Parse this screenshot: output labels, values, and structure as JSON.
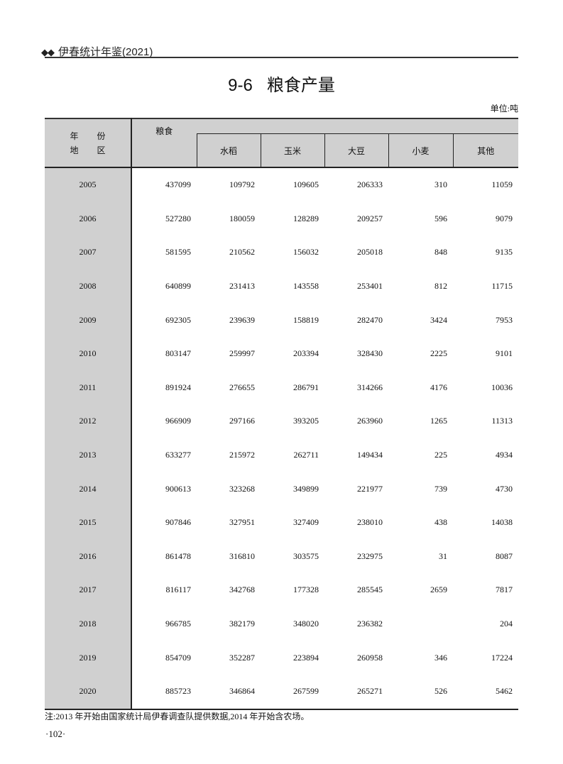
{
  "running_head": {
    "marker": "◆◆",
    "text": "伊春统计年鉴(2021)"
  },
  "title": {
    "number": "9-6",
    "text": "粮食产量"
  },
  "unit": "单位:吨",
  "table": {
    "year_header": {
      "line1": [
        "年",
        "份"
      ],
      "line2": [
        "地",
        "区"
      ]
    },
    "grain_header": "粮食",
    "sub_headers": [
      "水稻",
      "玉米",
      "大豆",
      "小麦",
      "其他"
    ],
    "rows": [
      {
        "year": "2005",
        "values": [
          "437099",
          "109792",
          "109605",
          "206333",
          "310",
          "11059"
        ]
      },
      {
        "year": "2006",
        "values": [
          "527280",
          "180059",
          "128289",
          "209257",
          "596",
          "9079"
        ]
      },
      {
        "year": "2007",
        "values": [
          "581595",
          "210562",
          "156032",
          "205018",
          "848",
          "9135"
        ]
      },
      {
        "year": "2008",
        "values": [
          "640899",
          "231413",
          "143558",
          "253401",
          "812",
          "11715"
        ]
      },
      {
        "year": "2009",
        "values": [
          "692305",
          "239639",
          "158819",
          "282470",
          "3424",
          "7953"
        ]
      },
      {
        "year": "2010",
        "values": [
          "803147",
          "259997",
          "203394",
          "328430",
          "2225",
          "9101"
        ]
      },
      {
        "year": "2011",
        "values": [
          "891924",
          "276655",
          "286791",
          "314266",
          "4176",
          "10036"
        ]
      },
      {
        "year": "2012",
        "values": [
          "966909",
          "297166",
          "393205",
          "263960",
          "1265",
          "11313"
        ]
      },
      {
        "year": "2013",
        "values": [
          "633277",
          "215972",
          "262711",
          "149434",
          "225",
          "4934"
        ]
      },
      {
        "year": "2014",
        "values": [
          "900613",
          "323268",
          "349899",
          "221977",
          "739",
          "4730"
        ]
      },
      {
        "year": "2015",
        "values": [
          "907846",
          "327951",
          "327409",
          "238010",
          "438",
          "14038"
        ]
      },
      {
        "year": "2016",
        "values": [
          "861478",
          "316810",
          "303575",
          "232975",
          "31",
          "8087"
        ]
      },
      {
        "year": "2017",
        "values": [
          "816117",
          "342768",
          "177328",
          "285545",
          "2659",
          "7817"
        ]
      },
      {
        "year": "2018",
        "values": [
          "966785",
          "382179",
          "348020",
          "236382",
          "",
          "204"
        ]
      },
      {
        "year": "2019",
        "values": [
          "854709",
          "352287",
          "223894",
          "260958",
          "346",
          "17224"
        ]
      },
      {
        "year": "2020",
        "values": [
          "885723",
          "346864",
          "267599",
          "265271",
          "526",
          "5462"
        ]
      }
    ]
  },
  "note": "注:2013 年开始由国家统计局伊春调查队提供数据,2014 年开始含农场。",
  "page_number": "·102·"
}
